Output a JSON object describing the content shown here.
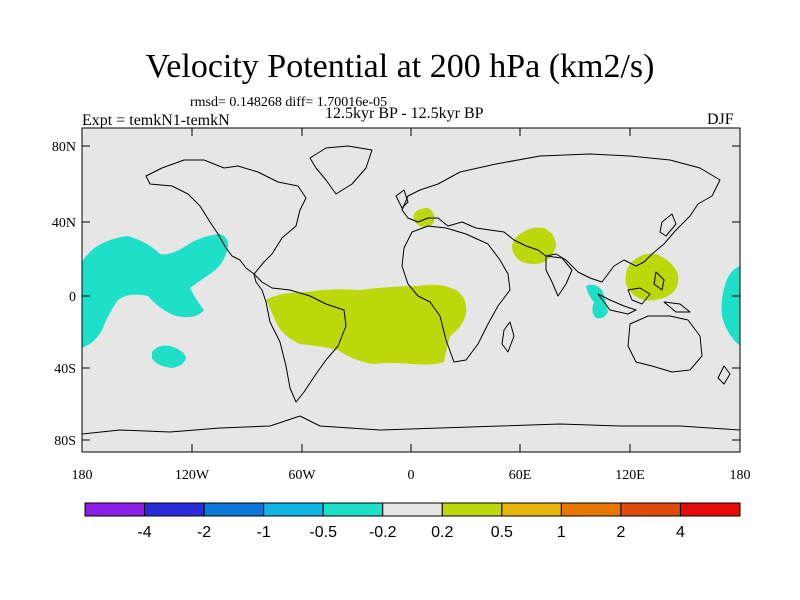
{
  "title": "Velocity Potential at 200 hPa (km2/s)",
  "stats": "rmsd= 0.148268 diff= 1.70016e-05",
  "experiment": "Expt = temkN1-temkN",
  "period": "12.5kyr BP - 12.5kyr BP",
  "season": "DJF",
  "lat_labels": [
    "80N",
    "40N",
    "0",
    "40S",
    "80S"
  ],
  "lon_labels": [
    "180",
    "120W",
    "60W",
    "0",
    "60E",
    "120E",
    "180"
  ],
  "colorbar": {
    "colors": [
      "#8a1ee6",
      "#2a2ad8",
      "#0a78d8",
      "#12b4e6",
      "#1ee0c8",
      "#e6e6e6",
      "#bcd80a",
      "#e6b40a",
      "#e67800",
      "#e04a0a",
      "#e60a0a"
    ],
    "labels": [
      "-4",
      "-2",
      "-1",
      "-0.5",
      "-0.2",
      "0.2",
      "0.5",
      "1",
      "2",
      "4"
    ]
  },
  "map_colors": {
    "ocean_land": "#e6e6e6",
    "positive": "#bcd80a",
    "negative": "#1ee0c8",
    "coast": "#000000"
  },
  "anomalies": [
    {
      "name": "north-pacific-negative",
      "sign": "negative",
      "lon": [
        -178,
        -118
      ],
      "lat": [
        -30,
        42
      ]
    },
    {
      "name": "south-pacific-negative-small",
      "sign": "negative",
      "lon": [
        -152,
        -134
      ],
      "lat": [
        -38,
        -25
      ]
    },
    {
      "name": "atlantic-positive",
      "sign": "positive",
      "lon": [
        -80,
        30
      ],
      "lat": [
        -40,
        8
      ]
    },
    {
      "name": "mediterranean-positive",
      "sign": "positive",
      "lon": [
        2,
        18
      ],
      "lat": [
        36,
        46
      ]
    },
    {
      "name": "arabia-positive",
      "sign": "positive",
      "lon": [
        58,
        84
      ],
      "lat": [
        18,
        40
      ]
    },
    {
      "name": "maritime-continent-positive",
      "sign": "positive",
      "lon": [
        120,
        145
      ],
      "lat": [
        -3,
        25
      ]
    },
    {
      "name": "indian-ocean-negative",
      "sign": "negative",
      "lon": [
        96,
        106
      ],
      "lat": [
        -15,
        10
      ]
    },
    {
      "name": "east-pacific-negative",
      "sign": "negative",
      "lon": [
        168,
        180
      ],
      "lat": [
        -28,
        17
      ]
    }
  ]
}
